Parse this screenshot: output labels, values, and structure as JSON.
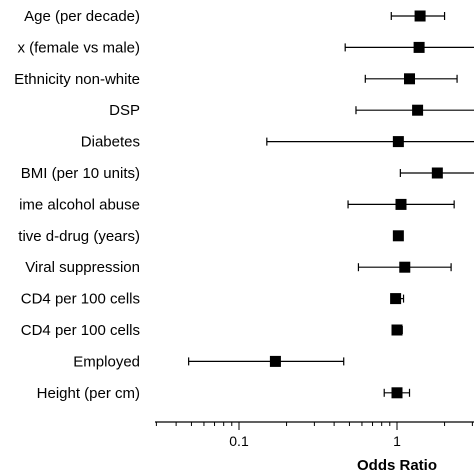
{
  "chart_data": {
    "type": "scatter",
    "subtype": "forest-plot",
    "xlabel": "Odds Ratio",
    "xscale": "log",
    "xlim": [
      0.03,
      3.3
    ],
    "xticks": [
      {
        "value": 0.1,
        "label": "0.1"
      },
      {
        "value": 1,
        "label": "1"
      }
    ],
    "grid": false,
    "legend": "none",
    "color": "#000000",
    "rows": [
      {
        "label": "Age (per decade)",
        "or": 1.4,
        "lo": 0.92,
        "hi": 2.0
      },
      {
        "label": "x (female vs male)",
        "or": 1.38,
        "lo": 0.47,
        "hi": 3.2
      },
      {
        "label": "Ethnicity non-white",
        "or": 1.2,
        "lo": 0.63,
        "hi": 2.4
      },
      {
        "label": "DSP",
        "or": 1.35,
        "lo": 0.55,
        "hi": 3.2
      },
      {
        "label": "Diabetes",
        "or": 1.02,
        "lo": 0.15,
        "hi": 3.3
      },
      {
        "label": "BMI (per 10 units)",
        "or": 1.8,
        "lo": 1.05,
        "hi": 3.3
      },
      {
        "label": "ime alcohol abuse",
        "or": 1.06,
        "lo": 0.49,
        "hi": 2.3
      },
      {
        "label": "tive d-drug (years)",
        "or": 1.02,
        "lo": 0.97,
        "hi": 1.07
      },
      {
        "label": "Viral suppression",
        "or": 1.12,
        "lo": 0.57,
        "hi": 2.2
      },
      {
        "label": "CD4 per 100 cells",
        "or": 0.98,
        "lo": 0.93,
        "hi": 1.1
      },
      {
        "label": "CD4 per 100 cells",
        "or": 1.0,
        "lo": 0.95,
        "hi": 1.08
      },
      {
        "label": "Employed",
        "or": 0.17,
        "lo": 0.048,
        "hi": 0.46
      },
      {
        "label": "Height (per cm)",
        "or": 1.0,
        "lo": 0.83,
        "hi": 1.2
      }
    ]
  }
}
